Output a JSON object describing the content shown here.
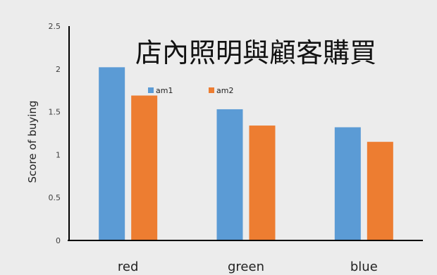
{
  "chart_data": {
    "type": "bar",
    "title": "店內照明與顧客購買",
    "xlabel": "",
    "ylabel": "Score of buying",
    "categories": [
      "red",
      "green",
      "blue"
    ],
    "series": [
      {
        "name": "am1",
        "color": "#5b9bd5",
        "values": [
          2.02,
          1.53,
          1.32
        ]
      },
      {
        "name": "am2",
        "color": "#ed7d31",
        "values": [
          1.69,
          1.34,
          1.15
        ]
      }
    ],
    "ylim": [
      0,
      2.5
    ],
    "yticks": [
      0,
      0.5,
      1,
      1.5,
      2,
      2.5
    ],
    "ytick_labels": [
      "0",
      "0.5",
      "1",
      "1.5",
      "2",
      "2.5"
    ],
    "grid": false,
    "legend_position": "top-center"
  }
}
